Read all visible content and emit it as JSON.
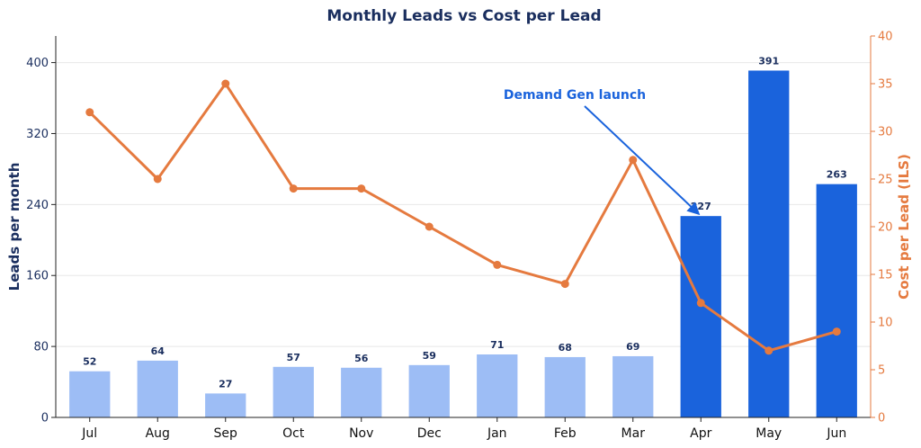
{
  "chart_data": {
    "type": "bar",
    "title": "Monthly Leads vs Cost per Lead",
    "categories": [
      "Jul",
      "Aug",
      "Sep",
      "Oct",
      "Nov",
      "Dec",
      "Jan",
      "Feb",
      "Mar",
      "Apr",
      "May",
      "Jun"
    ],
    "series": [
      {
        "type": "bar",
        "axis": "left",
        "values": [
          52,
          64,
          27,
          57,
          56,
          59,
          71,
          68,
          69,
          227,
          391,
          263
        ],
        "color_before": "#9dbdf5",
        "color_after": "#1a63dc"
      },
      {
        "type": "line",
        "axis": "right",
        "values": [
          32,
          25,
          35,
          24,
          24,
          20,
          16,
          14,
          27,
          12,
          7,
          9
        ],
        "color": "#e57a3f"
      }
    ],
    "ylabel": "Leads per month",
    "y2label": "Cost per Lead (ILS)",
    "ylim": [
      0,
      430
    ],
    "y2lim": [
      0,
      40
    ],
    "yticks": [
      "0",
      "80",
      "160",
      "240",
      "320",
      "400"
    ],
    "y2ticks": [
      "0",
      "5",
      "10",
      "15",
      "20",
      "25",
      "30",
      "35",
      "40"
    ],
    "grid": "horizontal",
    "annotation": {
      "text": "Demand Gen launch",
      "target_category": "Apr",
      "target_value": 227,
      "color": "#1a63dc"
    },
    "colors": {
      "title": "#1a2e5e",
      "left_axis": "#1a2e5e",
      "right_axis": "#e57a3f",
      "grid": "#e8e8e8"
    }
  }
}
